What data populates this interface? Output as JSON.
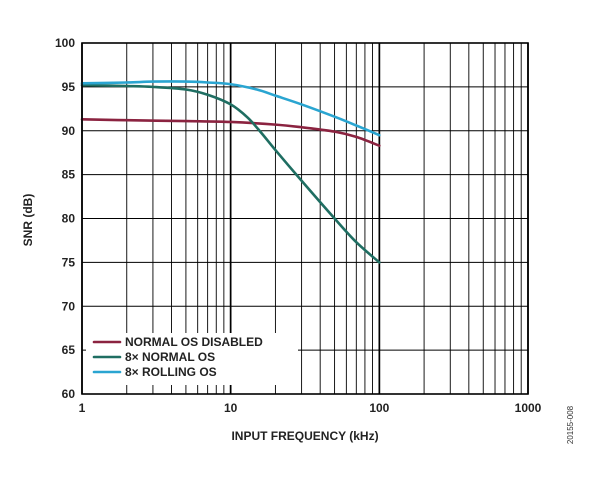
{
  "chart_data": {
    "type": "line",
    "xlabel": "INPUT FREQUENCY (kHz)",
    "ylabel": "SNR (dB)",
    "x_scale": "log",
    "xlim": [
      1,
      1000
    ],
    "ylim": [
      60,
      100
    ],
    "x_ticks": [
      {
        "value": 1,
        "label": "1"
      },
      {
        "value": 10,
        "label": "10"
      },
      {
        "value": 100,
        "label": "100"
      },
      {
        "value": 1000,
        "label": "1000"
      }
    ],
    "y_ticks": [
      {
        "value": 60,
        "label": "60"
      },
      {
        "value": 65,
        "label": "65"
      },
      {
        "value": 70,
        "label": "70"
      },
      {
        "value": 75,
        "label": "75"
      },
      {
        "value": 80,
        "label": "80"
      },
      {
        "value": 85,
        "label": "85"
      },
      {
        "value": 90,
        "label": "90"
      },
      {
        "value": 95,
        "label": "95"
      },
      {
        "value": 100,
        "label": "100"
      }
    ],
    "grid": true,
    "legend_position": "bottom-left",
    "figure_id": "20155-008",
    "series": [
      {
        "name": "NORMAL OS DISABLED",
        "color": "#8b2340",
        "x": [
          1,
          2,
          5,
          10,
          20,
          30,
          50,
          70,
          100
        ],
        "y": [
          91.3,
          91.2,
          91.1,
          91.0,
          90.7,
          90.4,
          89.9,
          89.3,
          88.3
        ]
      },
      {
        "name": "8× NORMAL OS",
        "color": "#1f6e62",
        "x": [
          1,
          2,
          3,
          5,
          7,
          10,
          13,
          16,
          20,
          30,
          50,
          70,
          100
        ],
        "y": [
          95.2,
          95.1,
          95.0,
          94.7,
          94.1,
          93.0,
          91.5,
          89.8,
          87.8,
          84.3,
          80.0,
          77.3,
          75.0
        ]
      },
      {
        "name": "8× ROLLING OS",
        "color": "#2aa5d1",
        "x": [
          1,
          2,
          3,
          5,
          7,
          10,
          15,
          20,
          30,
          50,
          70,
          100
        ],
        "y": [
          95.4,
          95.5,
          95.6,
          95.6,
          95.5,
          95.3,
          94.7,
          94.0,
          93.0,
          91.6,
          90.6,
          89.5
        ]
      }
    ]
  }
}
